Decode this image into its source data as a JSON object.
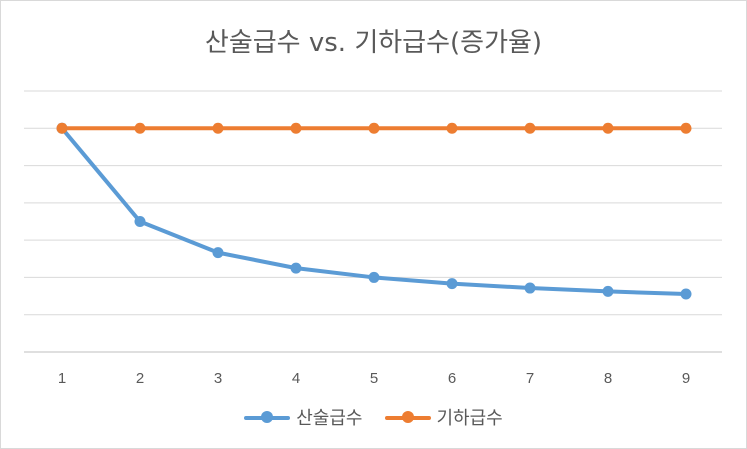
{
  "chart_data": {
    "type": "line",
    "title": "산술급수 vs. 기하급수(증가율)",
    "categories": [
      "1",
      "2",
      "3",
      "4",
      "5",
      "6",
      "7",
      "8",
      "9"
    ],
    "series": [
      {
        "name": "산술급수",
        "color": "#5b9bd5",
        "values": [
          1.0,
          0.5,
          0.333,
          0.25,
          0.2,
          0.167,
          0.143,
          0.125,
          0.111
        ]
      },
      {
        "name": "기하급수",
        "color": "#ed7d31",
        "values": [
          1.0,
          1.0,
          1.0,
          1.0,
          1.0,
          1.0,
          1.0,
          1.0,
          1.0
        ]
      }
    ],
    "ylim": [
      -0.2,
      1.2
    ],
    "y_gridlines": [
      -0.2,
      0.0,
      0.2,
      0.4,
      0.6,
      0.8,
      1.0,
      1.2
    ],
    "y_tick_labels_shown": false,
    "grid": true,
    "legend_position": "bottom"
  }
}
